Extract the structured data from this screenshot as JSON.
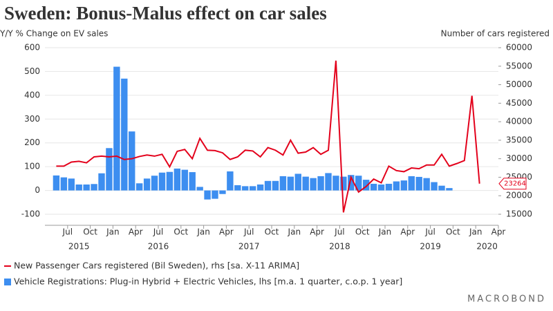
{
  "chart_data": {
    "type": "combo",
    "title": "Sweden: Bonus-Malus effect on car sales",
    "y_label": "Y/Y % Change on EV sales",
    "y2_label": "Number of cars registered",
    "brand": "MACROBOND",
    "xlim": [
      "2015-04",
      "2020-04"
    ],
    "xticks": [
      {
        "value": "2015-07",
        "label": "Jul"
      },
      {
        "value": "2015-10",
        "label": "Oct"
      },
      {
        "value": "2016-01",
        "label": "Jan"
      },
      {
        "value": "2016-04",
        "label": "Apr"
      },
      {
        "value": "2016-07",
        "label": "Jul"
      },
      {
        "value": "2016-10",
        "label": "Oct"
      },
      {
        "value": "2017-01",
        "label": "Jan"
      },
      {
        "value": "2017-04",
        "label": "Apr"
      },
      {
        "value": "2017-07",
        "label": "Jul"
      },
      {
        "value": "2017-10",
        "label": "Oct"
      },
      {
        "value": "2018-01",
        "label": "Jan"
      },
      {
        "value": "2018-04",
        "label": "Apr"
      },
      {
        "value": "2018-07",
        "label": "Jul"
      },
      {
        "value": "2018-10",
        "label": "Oct"
      },
      {
        "value": "2019-01",
        "label": "Jan"
      },
      {
        "value": "2019-04",
        "label": "Apr"
      },
      {
        "value": "2019-07",
        "label": "Jul"
      },
      {
        "value": "2019-10",
        "label": "Oct"
      },
      {
        "value": "2020-01",
        "label": "Jan"
      },
      {
        "value": "2020-04",
        "label": "Apr"
      }
    ],
    "year_labels": [
      "2015",
      "2016",
      "2017",
      "2018",
      "2019",
      "2020"
    ],
    "ylim": [
      -100,
      600
    ],
    "yticks": [
      -100,
      0,
      100,
      200,
      300,
      400,
      500,
      600
    ],
    "y2lim": [
      15000,
      60000
    ],
    "y2ticks": [
      15000,
      20000,
      25000,
      30000,
      35000,
      40000,
      45000,
      50000,
      55000,
      60000
    ],
    "grid": true,
    "series": [
      {
        "name": "New Passenger Cars registered (Bil Sweden), rhs [sa. X-11 ARIMA]",
        "type": "line",
        "axis": "y2",
        "color": "#e3001b",
        "x": [
          "2015-05",
          "2015-06",
          "2015-07",
          "2015-08",
          "2015-09",
          "2015-10",
          "2015-11",
          "2015-12",
          "2016-01",
          "2016-02",
          "2016-03",
          "2016-04",
          "2016-05",
          "2016-06",
          "2016-07",
          "2016-08",
          "2016-09",
          "2016-10",
          "2016-11",
          "2016-12",
          "2017-01",
          "2017-02",
          "2017-03",
          "2017-04",
          "2017-05",
          "2017-06",
          "2017-07",
          "2017-08",
          "2017-09",
          "2017-10",
          "2017-11",
          "2017-12",
          "2018-01",
          "2018-02",
          "2018-03",
          "2018-04",
          "2018-05",
          "2018-06",
          "2018-07",
          "2018-08",
          "2018-09",
          "2018-10",
          "2018-11",
          "2018-12",
          "2019-01",
          "2019-02",
          "2019-03",
          "2019-04",
          "2019-05",
          "2019-06",
          "2019-07",
          "2019-08",
          "2019-09",
          "2019-10",
          "2019-11",
          "2019-12",
          "2020-01"
        ],
        "values": [
          28000,
          28000,
          29100,
          29300,
          28900,
          30500,
          30700,
          30500,
          30700,
          29800,
          30000,
          30600,
          31000,
          30700,
          31200,
          27800,
          32000,
          32500,
          30000,
          35500,
          32300,
          32200,
          31600,
          29800,
          30500,
          32300,
          32100,
          30500,
          33000,
          32300,
          31000,
          35000,
          31500,
          31800,
          33000,
          31200,
          32300,
          56500,
          15500,
          25000,
          21000,
          22500,
          24500,
          23500,
          28000,
          26800,
          26500,
          27500,
          27300,
          28300,
          28300,
          31200,
          28000,
          28700,
          29500,
          47000,
          23264
        ]
      },
      {
        "name": "Vehicle Registrations: Plug-in Hybrid + Electric Vehicles, lhs [m.a. 1 quarter, c.o.p. 1 year]",
        "type": "bar",
        "axis": "y",
        "color": "#3d8ef0",
        "x": [
          "2015-05",
          "2015-06",
          "2015-07",
          "2015-08",
          "2015-09",
          "2015-10",
          "2015-11",
          "2015-12",
          "2016-01",
          "2016-02",
          "2016-03",
          "2016-04",
          "2016-05",
          "2016-06",
          "2016-07",
          "2016-08",
          "2016-09",
          "2016-10",
          "2016-11",
          "2016-12",
          "2017-01",
          "2017-02",
          "2017-03",
          "2017-04",
          "2017-05",
          "2017-06",
          "2017-07",
          "2017-08",
          "2017-09",
          "2017-10",
          "2017-11",
          "2017-12",
          "2018-01",
          "2018-02",
          "2018-03",
          "2018-04",
          "2018-05",
          "2018-06",
          "2018-07",
          "2018-08",
          "2018-09",
          "2018-10",
          "2018-11",
          "2018-12",
          "2019-01",
          "2019-02",
          "2019-03",
          "2019-04",
          "2019-05",
          "2019-06",
          "2019-07",
          "2019-08",
          "2019-09"
        ],
        "values": [
          63,
          55,
          50,
          25,
          25,
          27,
          72,
          178,
          520,
          470,
          248,
          30,
          50,
          62,
          75,
          78,
          92,
          87,
          77,
          15,
          -38,
          -35,
          -15,
          80,
          22,
          18,
          18,
          25,
          40,
          40,
          60,
          58,
          70,
          58,
          52,
          60,
          73,
          62,
          58,
          65,
          62,
          45,
          28,
          25,
          28,
          38,
          42,
          60,
          57,
          52,
          35,
          20,
          10
        ]
      }
    ]
  }
}
